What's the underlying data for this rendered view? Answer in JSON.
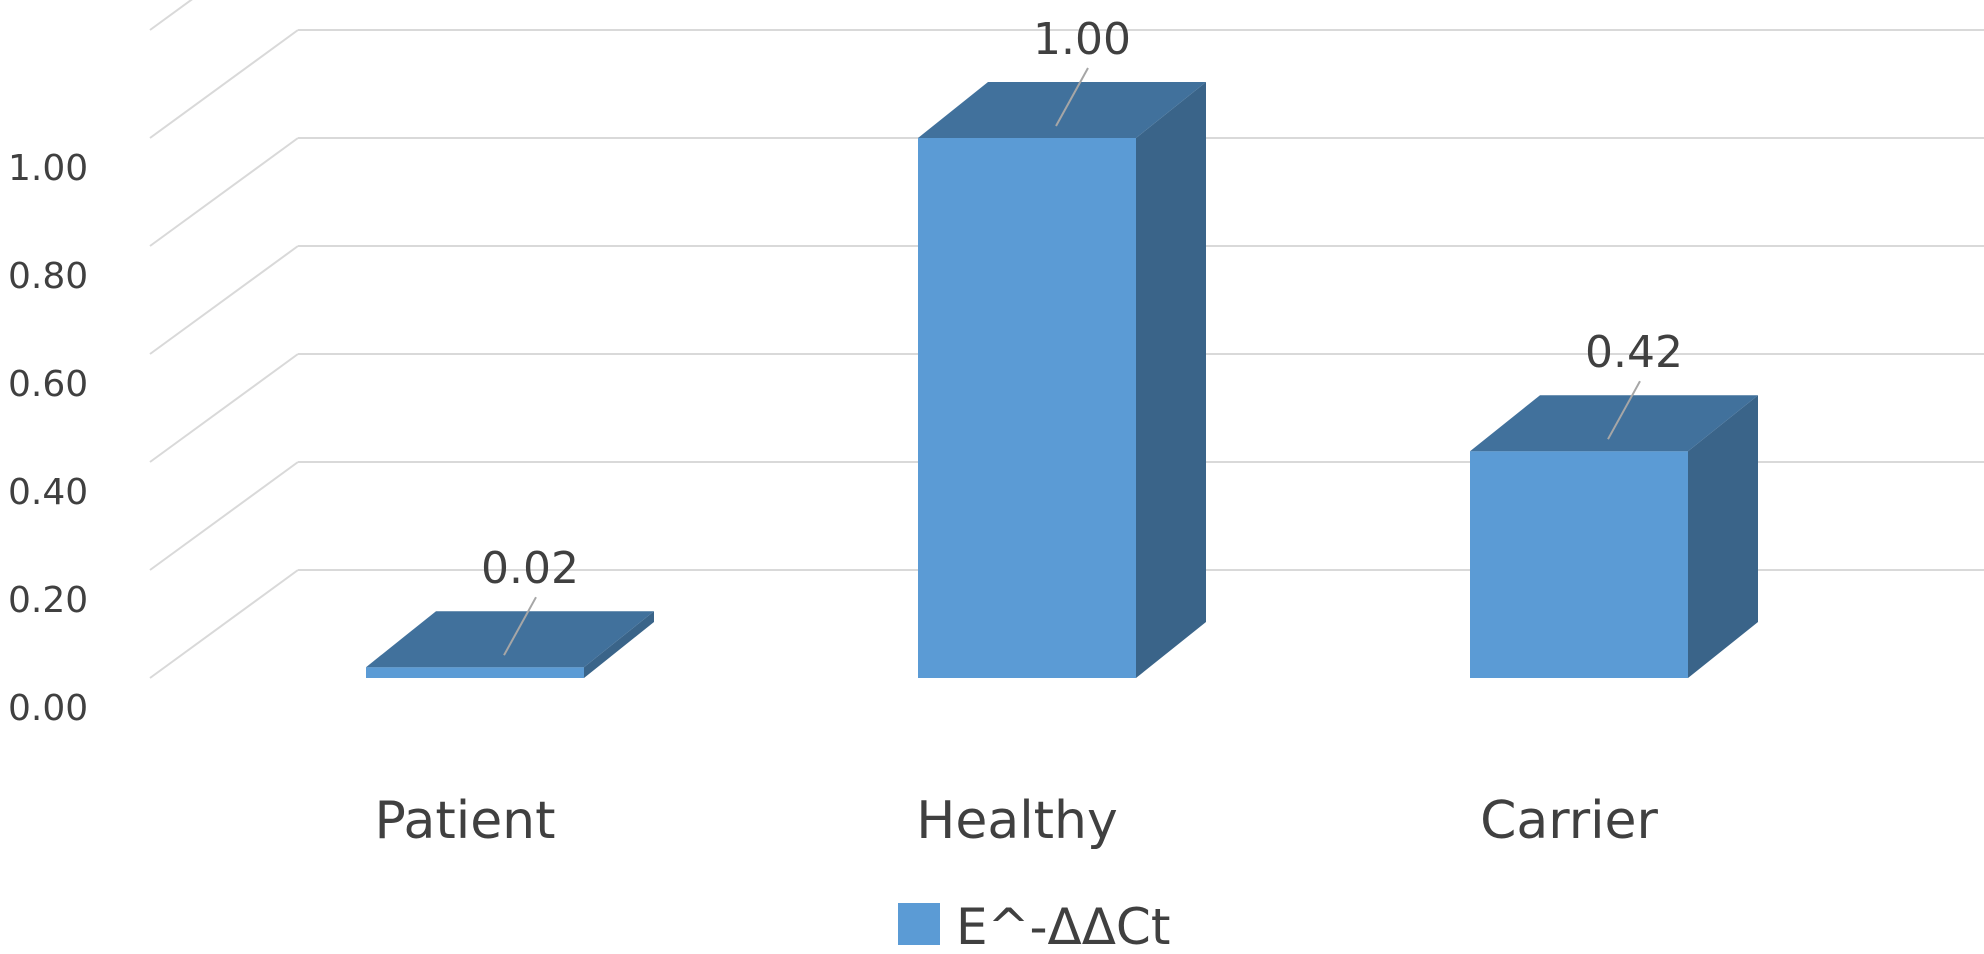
{
  "chart_data": {
    "type": "bar",
    "title": "",
    "xlabel": "",
    "ylabel": "",
    "categories": [
      "Patient",
      "Healthy",
      "Carrier"
    ],
    "series": [
      {
        "name": "E^-ΔΔCt",
        "values": [
          0.02,
          1.0,
          0.42
        ],
        "data_labels": [
          "0.02",
          "1.00",
          "0.42"
        ]
      }
    ],
    "ylim": [
      0,
      1.2
    ],
    "y_ticks": [
      0.0,
      0.2,
      0.4,
      0.6,
      0.8,
      1.0
    ],
    "y_tick_labels": [
      "0.00",
      "0.20",
      "0.40",
      "0.60",
      "0.80",
      "1.00"
    ],
    "grid": true,
    "three_d": true,
    "legend": {
      "position": "bottom-center",
      "labels": [
        "E^-ΔΔCt"
      ]
    },
    "colors": {
      "bar_front": "#5b9bd5",
      "bar_top": "#41719c",
      "bar_side": "#3a6489",
      "gridline": "#d9d9d9",
      "text": "#404040"
    }
  }
}
